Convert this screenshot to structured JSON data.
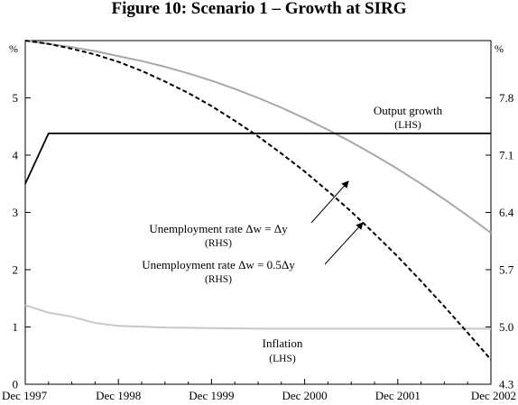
{
  "chart_data": {
    "type": "line",
    "title": "Figure 10: Scenario 1 – Growth at SIRG",
    "left_unit": "%",
    "right_unit": "%",
    "x_range": [
      "Dec 1997",
      "Dec 2002"
    ],
    "x_ticks": [
      "Dec 1997",
      "Dec 1998",
      "Dec 1999",
      "Dec 2000",
      "Dec 2001",
      "Dec 2002"
    ],
    "left_axis": {
      "ylim": [
        0,
        6
      ],
      "ticks": [
        "0",
        "1",
        "2",
        "3",
        "4",
        "5"
      ]
    },
    "right_axis": {
      "ylim": [
        4.3,
        8.5
      ],
      "ticks": [
        "4.3",
        "5.0",
        "5.7",
        "6.4",
        "7.1",
        "7.8"
      ]
    },
    "grid": false,
    "series": [
      {
        "name": "Output growth",
        "axis": "left",
        "color": "#000000",
        "style": "solid",
        "x": [
          0,
          0.25,
          1,
          2,
          3,
          4,
          5
        ],
        "y": [
          3.5,
          4.38,
          4.38,
          4.38,
          4.38,
          4.38,
          4.38
        ]
      },
      {
        "name": "Unemployment rate Δw = Δy",
        "axis": "right",
        "color": "#a8a8a8",
        "style": "solid",
        "x": [
          0,
          0.25,
          0.5,
          0.75,
          1,
          1.25,
          1.5,
          1.75,
          2,
          2.25,
          2.5,
          2.75,
          3,
          3.25,
          3.5,
          3.75,
          4,
          4.25,
          4.5,
          4.75,
          5
        ],
        "y": [
          8.5,
          8.46,
          8.42,
          8.37,
          8.31,
          8.25,
          8.18,
          8.1,
          8.01,
          7.91,
          7.8,
          7.68,
          7.55,
          7.41,
          7.26,
          7.1,
          6.93,
          6.75,
          6.56,
          6.36,
          6.15
        ]
      },
      {
        "name": "Unemployment rate Δw = 0.5Δy",
        "axis": "right",
        "color": "#000000",
        "style": "dashed",
        "x": [
          0,
          0.25,
          0.5,
          0.75,
          1,
          1.25,
          1.5,
          1.75,
          2,
          2.25,
          2.5,
          2.75,
          3,
          3.25,
          3.5,
          3.75,
          4,
          4.25,
          4.5,
          4.75,
          5
        ],
        "y": [
          8.5,
          8.46,
          8.4,
          8.33,
          8.24,
          8.13,
          8.0,
          7.86,
          7.7,
          7.52,
          7.33,
          7.12,
          6.9,
          6.66,
          6.41,
          6.14,
          5.86,
          5.56,
          5.25,
          4.93,
          4.6
        ]
      },
      {
        "name": "Inflation",
        "axis": "left",
        "color": "#c8c8c8",
        "style": "solid",
        "x": [
          0,
          0.25,
          0.5,
          0.75,
          1,
          1.5,
          2,
          2.5,
          3,
          3.5,
          4,
          4.5,
          5
        ],
        "y": [
          1.38,
          1.25,
          1.18,
          1.07,
          1.02,
          0.99,
          0.98,
          0.97,
          0.97,
          0.97,
          0.97,
          0.97,
          0.97
        ]
      }
    ],
    "annotations": [
      {
        "text": "Output growth",
        "sub": "(LHS)"
      },
      {
        "text": "Unemployment rate Δw = Δy",
        "sub": "(RHS)"
      },
      {
        "text": "Unemployment rate Δw = 0.5Δy",
        "sub": "(RHS)"
      },
      {
        "text": "Inflation",
        "sub": "(LHS)"
      }
    ]
  }
}
